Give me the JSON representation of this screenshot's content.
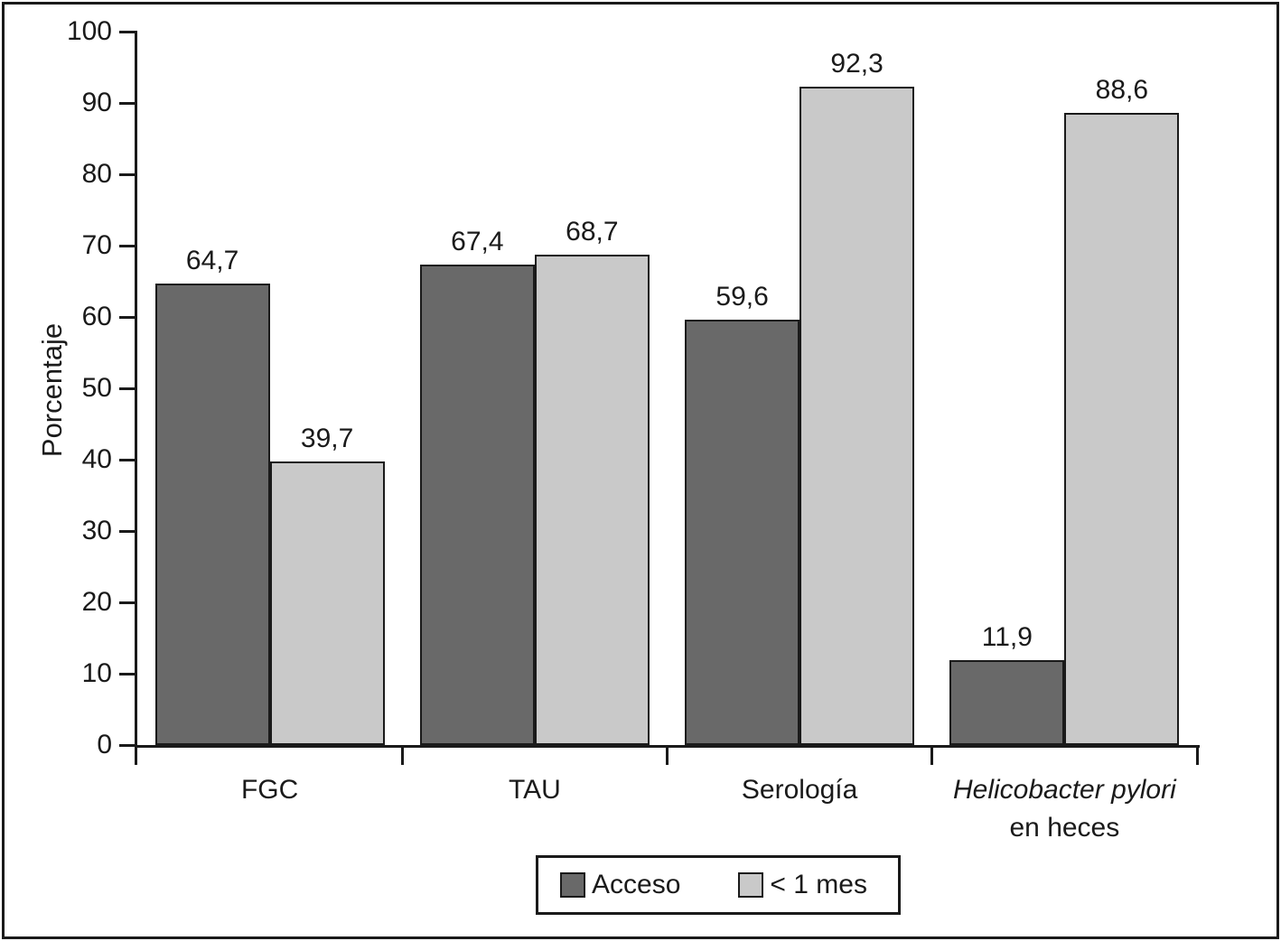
{
  "chart_data": {
    "type": "bar",
    "title": "",
    "xlabel": "",
    "ylabel": "Porcentaje",
    "ylim": [
      0,
      100
    ],
    "ytick_step": 10,
    "ytick_labels": [
      "0",
      "10",
      "20",
      "30",
      "40",
      "50",
      "60",
      "70",
      "80",
      "90",
      "100"
    ],
    "grid": false,
    "legend_position": "bottom",
    "categories": [
      {
        "lines": [
          {
            "text": "FGC",
            "italic": false
          }
        ]
      },
      {
        "lines": [
          {
            "text": "TAU",
            "italic": false
          }
        ]
      },
      {
        "lines": [
          {
            "text": "Serología",
            "italic": false
          }
        ]
      },
      {
        "lines": [
          {
            "text": "Helicobacter pylori",
            "italic": true
          },
          {
            "text": "en heces",
            "italic": false
          }
        ]
      }
    ],
    "series": [
      {
        "name": "Acceso",
        "color": "#696969",
        "values": [
          64.7,
          67.4,
          59.6,
          11.9
        ],
        "value_labels": [
          "64,7",
          "67,4",
          "59,6",
          "11,9"
        ]
      },
      {
        "name": "< 1 mes",
        "color": "#c9c9c9",
        "values": [
          39.7,
          68.7,
          92.3,
          88.6
        ],
        "value_labels": [
          "39,7",
          "68,7",
          "92,3",
          "88,6"
        ]
      }
    ],
    "colors": {
      "axis": "#1a1a1a",
      "text": "#1a1a1a",
      "background": "#ffffff",
      "figure_border": "#1a1a1a"
    }
  }
}
